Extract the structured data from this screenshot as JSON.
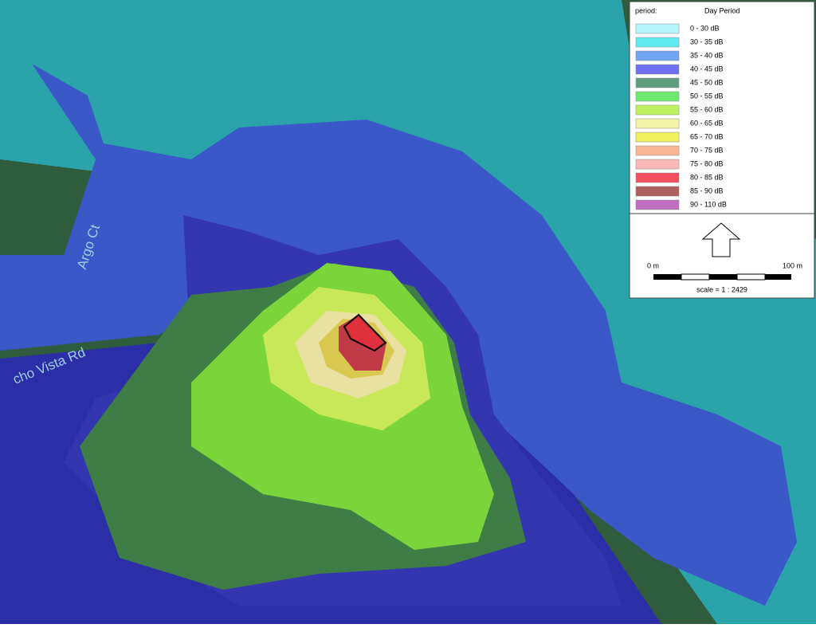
{
  "legend": {
    "period_label": "period:",
    "period": "Day Period",
    "items": [
      {
        "label": "0 - 30 dB",
        "color": "#b8f4fb"
      },
      {
        "label": "30 - 35 dB",
        "color": "#5fe8f0"
      },
      {
        "label": "35 - 40 dB",
        "color": "#6fa4f0"
      },
      {
        "label": "40 - 45 dB",
        "color": "#6f6ff0"
      },
      {
        "label": "45 - 50 dB",
        "color": "#5f9f7f"
      },
      {
        "label": "50 - 55 dB",
        "color": "#6fe86f"
      },
      {
        "label": "55 - 60 dB",
        "color": "#bff05f"
      },
      {
        "label": "60 - 65 dB",
        "color": "#f4f4a8"
      },
      {
        "label": "65 - 70 dB",
        "color": "#f0f05f"
      },
      {
        "label": "70 - 75 dB",
        "color": "#f8b894"
      },
      {
        "label": "75 - 80 dB",
        "color": "#f8b8b8"
      },
      {
        "label": "80 - 85 dB",
        "color": "#f04f5f"
      },
      {
        "label": "85 - 90 dB",
        "color": "#b05f5f"
      },
      {
        "label": "90 - 110 dB",
        "color": "#c06fc0"
      }
    ]
  },
  "scale": {
    "start": "0 m",
    "end": "100 m",
    "ratio": "scale = 1 : 2429"
  },
  "streets": {
    "argo": "Argo Ct",
    "rancho": "cho Vista Rd"
  }
}
